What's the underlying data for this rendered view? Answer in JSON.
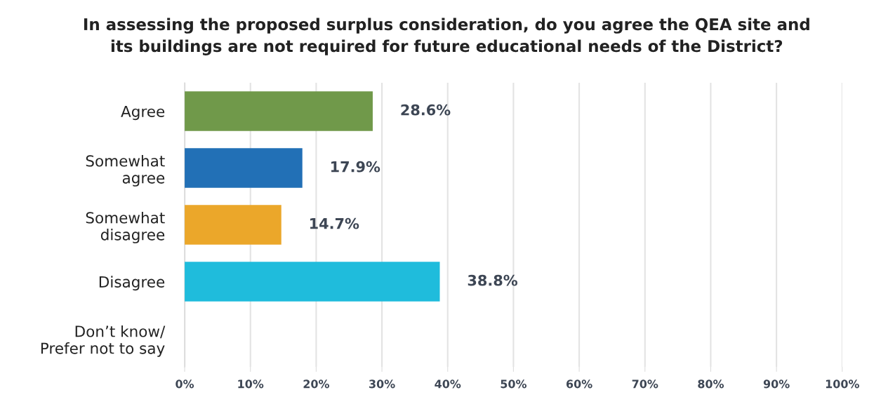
{
  "chart_data": {
    "type": "bar",
    "orientation": "horizontal",
    "title": "In assessing the proposed surplus consideration, do you agree the QEA site and\nits buildings are not required for future educational needs of the District?",
    "categories": [
      "Agree",
      "Somewhat\nagree",
      "Somewhat\ndisagree",
      "Disagree",
      "Don’t know/\nPrefer not to say"
    ],
    "values": [
      28.6,
      17.9,
      14.7,
      38.8,
      null
    ],
    "colors": [
      "#70994a",
      "#2270b6",
      "#eba72a",
      "#1fbcdc",
      "#888888"
    ],
    "value_labels": [
      "28.6%",
      "17.9%",
      "14.7%",
      "38.8%",
      null
    ],
    "xlim": [
      0,
      100
    ],
    "xticks": [
      {
        "value": 0,
        "label": "0%"
      },
      {
        "value": 10,
        "label": "10%"
      },
      {
        "value": 20,
        "label": "20%"
      },
      {
        "value": 30,
        "label": "30%"
      },
      {
        "value": 40,
        "label": "40%"
      },
      {
        "value": 50,
        "label": "50%"
      },
      {
        "value": 60,
        "label": "60%"
      },
      {
        "value": 70,
        "label": "70%"
      },
      {
        "value": 80,
        "label": "80%"
      },
      {
        "value": 90,
        "label": "90%"
      },
      {
        "value": 100,
        "label": "100%"
      }
    ],
    "grid": "x"
  }
}
